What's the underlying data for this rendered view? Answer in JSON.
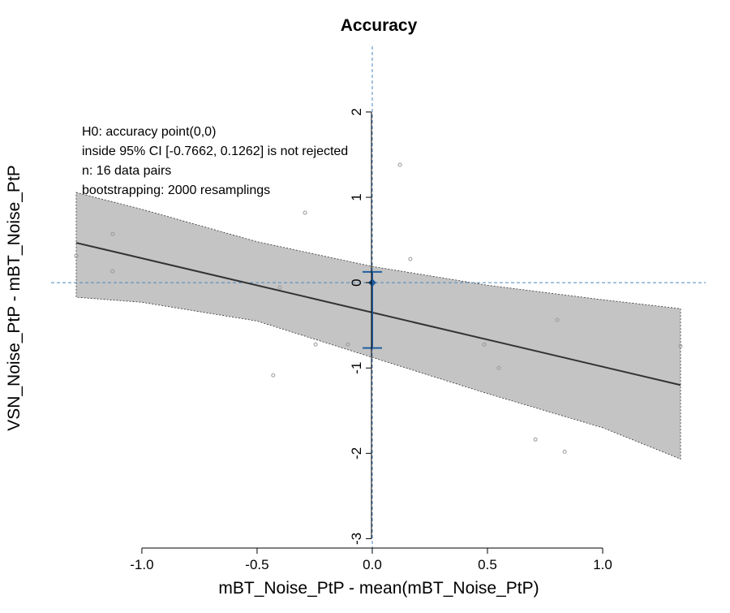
{
  "chart_data": {
    "type": "scatter",
    "title": "Accuracy",
    "xlabel": "mBT_Noise_PtP - mean(mBT_Noise_PtP)",
    "ylabel": "VSN_Noise_PtP - mBT_Noise_PtP",
    "annotation": [
      "H0: accuracy point(0,0)",
      "inside 95% CI [-0.7662, 0.1262] is not rejected",
      "n: 16 data pairs",
      "bootstrapping: 2000 resamplings"
    ],
    "x": [
      -1.285,
      -1.127,
      -1.127,
      -0.401,
      -0.292,
      -0.246,
      -0.43,
      -0.106,
      0.12,
      0.165,
      0.486,
      0.549,
      0.803,
      0.708,
      0.835,
      1.338
    ],
    "y": [
      0.314,
      0.571,
      0.133,
      -0.057,
      0.819,
      -0.724,
      -1.086,
      -0.724,
      1.381,
      0.276,
      -0.724,
      -1.0,
      -0.438,
      -1.838,
      -1.981,
      -0.743
    ],
    "point_color": "#999999",
    "fit": {
      "x": [
        -1.285,
        1.338
      ],
      "y": [
        0.467,
        -1.2
      ],
      "color": "#333333"
    },
    "band": {
      "x": [
        -1.285,
        -1,
        -0.5,
        0,
        0.5,
        1,
        1.338
      ],
      "upper": [
        1.057,
        0.86,
        0.48,
        0.19,
        -0.03,
        -0.2,
        -0.305
      ],
      "lower": [
        -0.171,
        -0.23,
        -0.45,
        -0.876,
        -1.3,
        -1.7,
        -2.067
      ],
      "color": "#c4c4c4"
    },
    "ci": {
      "x": 0,
      "point": 0,
      "lower": -0.7662,
      "upper": 0.1262,
      "color": "#1f5fa0"
    },
    "ref_color": "#4a86c0",
    "xlim": [
      -1.394,
      1.447
    ],
    "ylim": [
      -3.11,
      2.77
    ],
    "xticks": [
      {
        "value": -1,
        "label": "-1.0"
      },
      -0.5,
      {
        "value": 0,
        "label": "0.0"
      },
      0.5,
      {
        "value": 1,
        "label": "1.0"
      }
    ],
    "yticks": [
      -3,
      -2,
      -1,
      0,
      1,
      2
    ]
  }
}
